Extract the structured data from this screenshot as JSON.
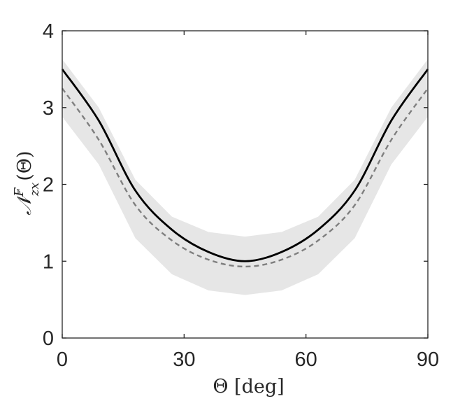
{
  "chart_data": {
    "type": "line",
    "xlabel": "Θ [deg]",
    "ylabel": {
      "symbol": "𝒩",
      "superscript": "F",
      "subscript": "zx",
      "argument": "(Θ)"
    },
    "xlim": [
      0,
      90
    ],
    "ylim": [
      0,
      4
    ],
    "xticks": [
      0,
      30,
      60,
      90
    ],
    "yticks": [
      0,
      1,
      2,
      3,
      4
    ],
    "grid": false,
    "colors": {
      "solid": "#000000",
      "dashed": "#7f7f7f",
      "band": "#e6e6e6",
      "axes": "#262626"
    },
    "x": [
      0,
      9,
      18,
      27,
      36,
      45,
      54,
      63,
      72,
      81,
      90
    ],
    "series": [
      {
        "style": "solid",
        "values": [
          3.5,
          2.83,
          1.92,
          1.41,
          1.12,
          1.0,
          1.12,
          1.41,
          1.92,
          2.83,
          3.5
        ]
      },
      {
        "style": "dashed",
        "values": [
          3.25,
          2.58,
          1.73,
          1.27,
          1.02,
          0.93,
          1.02,
          1.27,
          1.73,
          2.58,
          3.25
        ]
      }
    ],
    "band": {
      "lower": [
        2.88,
        2.26,
        1.3,
        0.83,
        0.62,
        0.56,
        0.62,
        0.83,
        1.3,
        2.26,
        2.88
      ],
      "upper": [
        3.63,
        3.0,
        2.06,
        1.58,
        1.38,
        1.32,
        1.38,
        1.58,
        2.06,
        3.0,
        3.63
      ]
    }
  }
}
